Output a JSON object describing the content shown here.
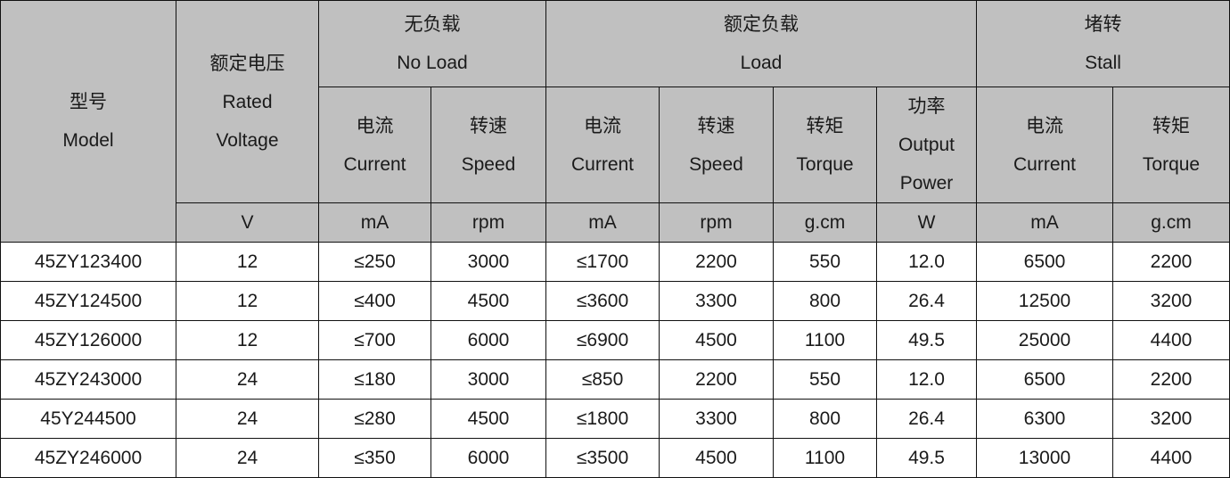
{
  "header": {
    "model": {
      "zh": "型号",
      "en": "Model"
    },
    "voltage": {
      "zh": "额定电压",
      "en1": "Rated",
      "en2": "Voltage",
      "unit": "V"
    },
    "no_load": {
      "zh": "无负载",
      "en": "No Load"
    },
    "load": {
      "zh": "额定负载",
      "en": "Load"
    },
    "stall": {
      "zh": "堵转",
      "en": "Stall"
    },
    "sub": [
      {
        "zh": "电流",
        "en": "Current",
        "unit": "mA"
      },
      {
        "zh": "转速",
        "en": "Speed",
        "unit": "rpm"
      },
      {
        "zh": "电流",
        "en": "Current",
        "unit": "mA"
      },
      {
        "zh": "转速",
        "en": "Speed",
        "unit": "rpm"
      },
      {
        "zh": "转矩",
        "en": "Torque",
        "unit": "g.cm"
      },
      {
        "zh": "功率",
        "en": "Output",
        "en2": "Power",
        "unit": "W"
      },
      {
        "zh": "电流",
        "en": "Current",
        "unit": "mA"
      },
      {
        "zh": "转矩",
        "en": "Torque",
        "unit": "g.cm"
      }
    ]
  },
  "rows": [
    [
      "45ZY123400",
      "12",
      "≤250",
      "3000",
      "≤1700",
      "2200",
      "550",
      "12.0",
      "6500",
      "2200"
    ],
    [
      "45ZY124500",
      "12",
      "≤400",
      "4500",
      "≤3600",
      "3300",
      "800",
      "26.4",
      "12500",
      "3200"
    ],
    [
      "45ZY126000",
      "12",
      "≤700",
      "6000",
      "≤6900",
      "4500",
      "1100",
      "49.5",
      "25000",
      "4400"
    ],
    [
      "45ZY243000",
      "24",
      "≤180",
      "3000",
      "≤850",
      "2200",
      "550",
      "12.0",
      "6500",
      "2200"
    ],
    [
      "45Y244500",
      "24",
      "≤280",
      "4500",
      "≤1800",
      "3300",
      "800",
      "26.4",
      "6300",
      "3200"
    ],
    [
      "45ZY246000",
      "24",
      "≤350",
      "6000",
      "≤3500",
      "4500",
      "1100",
      "49.5",
      "13000",
      "4400"
    ]
  ],
  "colors": {
    "header_bg": "#c0c0c0",
    "border": "#111111"
  }
}
